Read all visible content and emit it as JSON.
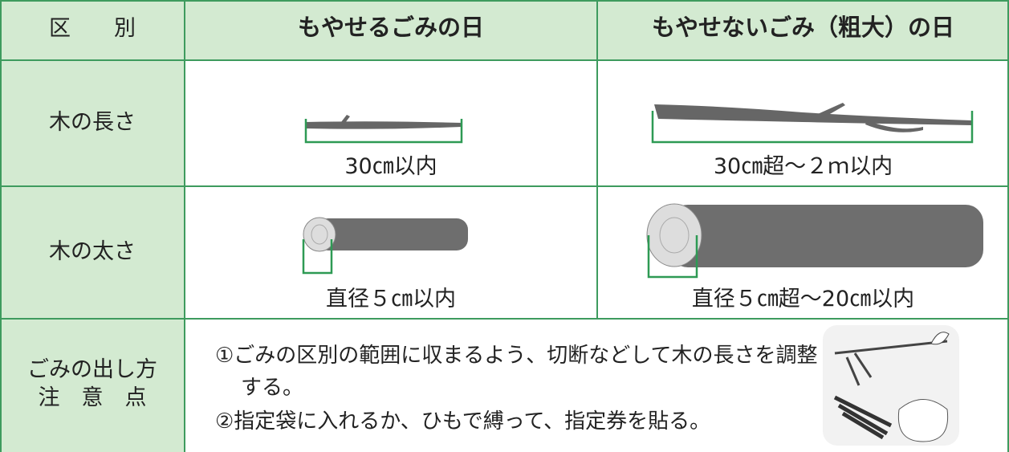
{
  "header": {
    "category": "区　　別",
    "burnable": "もやせるごみの日",
    "non_burnable": "もやせないごみ（粗大）の日"
  },
  "rows": [
    {
      "label": "木の長さ",
      "burnable": "30㎝以内",
      "non_burnable": "30㎝超～２ｍ以内"
    },
    {
      "label": "木の太さ",
      "burnable": "直径５㎝以内",
      "non_burnable": "直径５㎝超～20㎝以内"
    }
  ],
  "notes": {
    "label_lines": [
      "ごみの出し方",
      "注　意　点"
    ],
    "items": [
      "①ごみの区別の範囲に収まるよう、切断などして木の長さを調整する。",
      "②指定袋に入れるか、ひもで縛って、指定券を貼る。"
    ]
  }
}
